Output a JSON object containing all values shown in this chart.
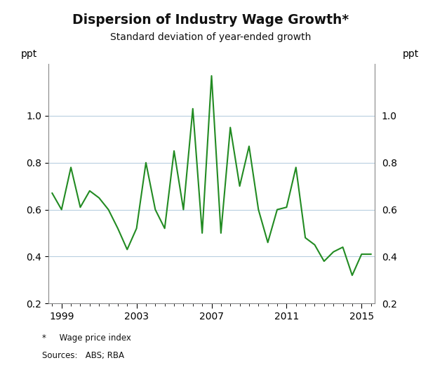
{
  "title": "Dispersion of Industry Wage Growth*",
  "subtitle": "Standard deviation of year-ended growth",
  "ylabel_left": "ppt",
  "ylabel_right": "ppt",
  "footnote": "*     Wage price index",
  "sources": "Sources:   ABS; RBA",
  "line_color": "#228B22",
  "line_width": 1.5,
  "background_color": "#ffffff",
  "grid_color": "#b8cfe0",
  "ylim": [
    0.2,
    1.22
  ],
  "yticks": [
    0.2,
    0.4,
    0.6,
    0.8,
    1.0
  ],
  "xlim_left": 1998.3,
  "xlim_right": 2015.7,
  "xticks_major": [
    1999,
    2003,
    2007,
    2011,
    2015
  ],
  "dates": [
    1998.5,
    1999.0,
    1999.5,
    2000.0,
    2000.5,
    2001.0,
    2001.5,
    2002.0,
    2002.5,
    2003.0,
    2003.5,
    2004.0,
    2004.5,
    2005.0,
    2005.5,
    2006.0,
    2006.5,
    2007.0,
    2007.5,
    2008.0,
    2008.5,
    2009.0,
    2009.5,
    2010.0,
    2010.5,
    2011.0,
    2011.5,
    2012.0,
    2012.5,
    2013.0,
    2013.5,
    2014.0,
    2014.5,
    2015.0,
    2015.5
  ],
  "values": [
    0.67,
    0.6,
    0.78,
    0.61,
    0.68,
    0.65,
    0.6,
    0.52,
    0.43,
    0.52,
    0.8,
    0.6,
    0.52,
    0.85,
    0.6,
    1.03,
    0.5,
    1.17,
    0.5,
    0.95,
    0.7,
    0.87,
    0.6,
    0.46,
    0.6,
    0.61,
    0.78,
    0.48,
    0.45,
    0.38,
    0.42,
    0.44,
    0.32,
    0.41,
    0.41
  ]
}
